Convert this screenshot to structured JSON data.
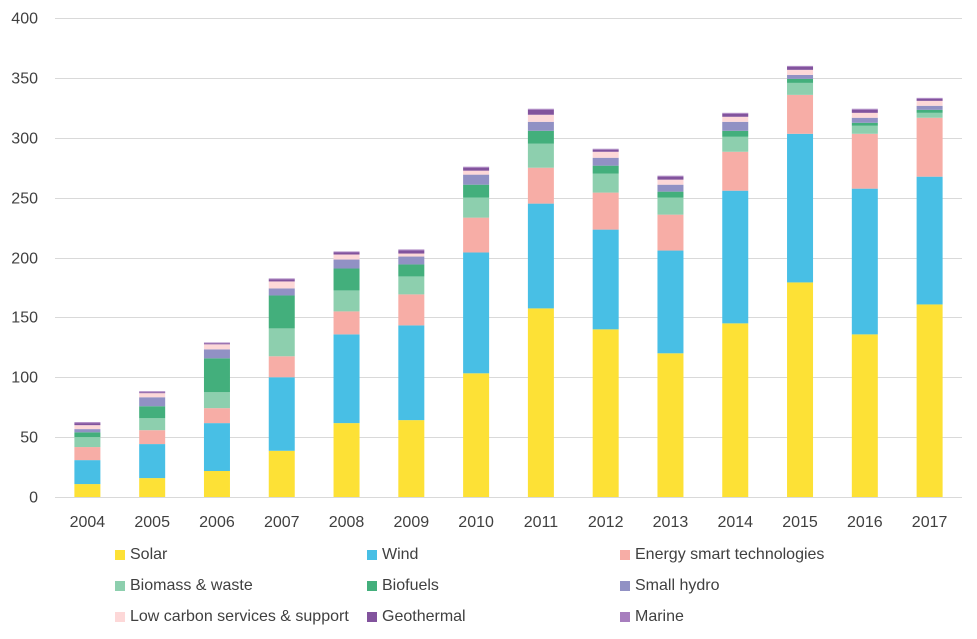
{
  "chart_data": {
    "type": "bar",
    "stacked": true,
    "title": "",
    "xlabel": "",
    "ylabel": "",
    "ylim": [
      0,
      400
    ],
    "yticks": [
      0,
      50,
      100,
      150,
      200,
      250,
      300,
      350,
      400
    ],
    "grid": true,
    "legend_position": "bottom",
    "categories": [
      "2004",
      "2005",
      "2006",
      "2007",
      "2008",
      "2009",
      "2010",
      "2011",
      "2012",
      "2013",
      "2014",
      "2015",
      "2016",
      "2017"
    ],
    "series": [
      {
        "name": "Solar",
        "color": "#FDE136",
        "values": [
          10.8,
          15.8,
          21.7,
          38.6,
          61.7,
          64.2,
          103.3,
          157.5,
          140.0,
          120.0,
          145.0,
          179.2,
          135.8,
          160.8
        ]
      },
      {
        "name": "Wind",
        "color": "#48BFE5",
        "values": [
          20.0,
          28.4,
          40.0,
          61.4,
          74.1,
          79.1,
          100.9,
          87.5,
          83.3,
          85.8,
          110.8,
          124.1,
          121.7,
          106.7
        ]
      },
      {
        "name": "Energy smart technologies",
        "color": "#F7ADA6",
        "values": [
          10.9,
          11.6,
          12.5,
          17.5,
          19.2,
          25.9,
          29.1,
          30.0,
          30.9,
          30.0,
          32.5,
          32.5,
          45.8,
          49.2
        ]
      },
      {
        "name": "Biomass & waste",
        "color": "#8DCFAE",
        "values": [
          8.3,
          10.0,
          13.3,
          23.3,
          17.5,
          15.0,
          16.7,
          20.0,
          15.8,
          14.2,
          12.5,
          10.0,
          6.7,
          4.1
        ]
      },
      {
        "name": "Biofuels",
        "color": "#43AF7C",
        "values": [
          4.0,
          10.0,
          28.3,
          27.5,
          18.3,
          10.0,
          10.8,
          10.8,
          6.7,
          5.0,
          5.0,
          3.4,
          2.5,
          2.5
        ]
      },
      {
        "name": "Small hydro",
        "color": "#9191C4",
        "values": [
          2.7,
          7.5,
          7.5,
          5.9,
          7.5,
          6.6,
          8.4,
          7.5,
          6.6,
          5.8,
          7.5,
          3.3,
          4.2,
          3.4
        ]
      },
      {
        "name": "Low carbon services & support",
        "color": "#FDD8D8",
        "values": [
          3.3,
          3.4,
          4.2,
          5.8,
          4.2,
          2.5,
          3.3,
          5.9,
          5.0,
          4.2,
          4.2,
          4.2,
          4.1,
          4.1
        ]
      },
      {
        "name": "Geothermal",
        "color": "#82539D",
        "values": [
          1.7,
          0.8,
          0.8,
          1.7,
          1.7,
          2.5,
          2.5,
          4.1,
          1.7,
          2.5,
          2.5,
          2.5,
          2.5,
          1.7
        ]
      },
      {
        "name": "Marine",
        "color": "#A77EBE",
        "values": [
          0.8,
          0.8,
          0.7,
          0.8,
          0.8,
          0.9,
          0.8,
          0.9,
          0.8,
          0.8,
          0.8,
          0.8,
          0.9,
          0.8
        ]
      }
    ],
    "legend_order": [
      [
        "Solar",
        "Wind",
        "Energy smart technologies"
      ],
      [
        "Biomass & waste",
        "Biofuels",
        "Small hydro"
      ],
      [
        "Low carbon services & support",
        "Geothermal",
        "Marine"
      ]
    ]
  },
  "colors": {
    "gridline": "#D9D9D9",
    "axis_text": "#404040"
  }
}
